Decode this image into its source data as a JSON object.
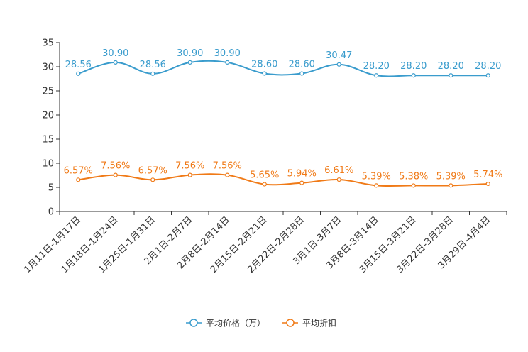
{
  "chart_data": {
    "type": "line",
    "title": "",
    "xlabel": "",
    "ylabel": "",
    "ylim": [
      0,
      35
    ],
    "yticks": [
      0,
      5,
      10,
      15,
      20,
      25,
      30,
      35
    ],
    "categories": [
      "1月11日-1月17日",
      "1月18日-1月24日",
      "1月25日-1月31日",
      "2月1日-2月7日",
      "2月8日-2月14日",
      "2月15日-2月21日",
      "2月22日-2月28日",
      "3月1日-3月7日",
      "3月8日-3月14日",
      "3月15日-3月21日",
      "3月22日-3月28日",
      "3月29日-4月4日"
    ],
    "series": [
      {
        "name": "平均价格（万）",
        "color": "#3a9ccd",
        "values": [
          28.56,
          30.9,
          28.56,
          30.9,
          30.9,
          28.6,
          28.6,
          30.47,
          28.2,
          28.2,
          28.2,
          28.2
        ],
        "labels": [
          "28.56",
          "30.90",
          "28.56",
          "30.90",
          "30.90",
          "28.60",
          "28.60",
          "30.47",
          "28.20",
          "28.20",
          "28.20",
          "28.20"
        ]
      },
      {
        "name": "平均折扣",
        "color": "#f07a17",
        "values": [
          6.57,
          7.56,
          6.57,
          7.56,
          7.56,
          5.65,
          5.94,
          6.61,
          5.39,
          5.38,
          5.39,
          5.74
        ],
        "labels": [
          "6.57%",
          "7.56%",
          "6.57%",
          "7.56%",
          "7.56%",
          "5.65%",
          "5.94%",
          "6.61%",
          "5.39%",
          "5.38%",
          "5.39%",
          "5.74%"
        ]
      }
    ],
    "legend_position": "bottom-center",
    "grid": false
  }
}
